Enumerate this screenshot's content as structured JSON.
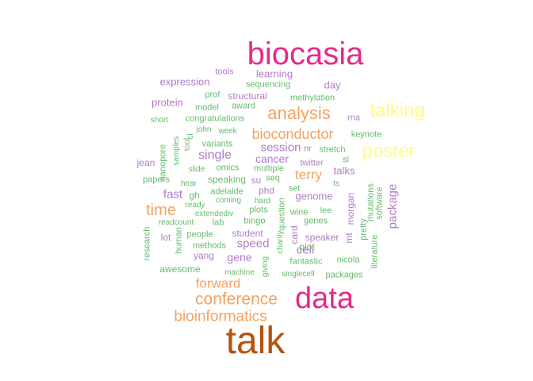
{
  "wordcloud": {
    "colors": {
      "a": "#e7298a",
      "b": "#f4a261",
      "c": "#fffb8a",
      "d": "#b07cc6",
      "e": "#66bb6a",
      "f": "#b5530e"
    },
    "words": [
      {
        "text": "talk",
        "color": "f"
      },
      {
        "text": "biocasia",
        "color": "a"
      },
      {
        "text": "data",
        "color": "a"
      },
      {
        "text": "analysis",
        "color": "b"
      },
      {
        "text": "talking",
        "color": "c"
      },
      {
        "text": "poster",
        "color": "c"
      },
      {
        "text": "conference",
        "color": "b"
      },
      {
        "text": "bioinformatics",
        "color": "b"
      },
      {
        "text": "bioconductor",
        "color": "b"
      },
      {
        "text": "time",
        "color": "b"
      },
      {
        "text": "forward",
        "color": "b"
      },
      {
        "text": "terry",
        "color": "b"
      },
      {
        "text": "session",
        "color": "d"
      },
      {
        "text": "single",
        "color": "d"
      },
      {
        "text": "cancer",
        "color": "d"
      },
      {
        "text": "fast",
        "color": "d"
      },
      {
        "text": "speed",
        "color": "d"
      },
      {
        "text": "cell",
        "color": "d"
      },
      {
        "text": "gene",
        "color": "d"
      },
      {
        "text": "package",
        "color": "d"
      },
      {
        "text": "protein",
        "color": "d"
      },
      {
        "text": "learning",
        "color": "d"
      },
      {
        "text": "day",
        "color": "d"
      },
      {
        "text": "expression",
        "color": "d"
      },
      {
        "text": "talks",
        "color": "d"
      },
      {
        "text": "genome",
        "color": "d"
      },
      {
        "text": "morgan",
        "color": "d"
      },
      {
        "text": "structural",
        "color": "d"
      },
      {
        "text": "methylation",
        "color": "e"
      },
      {
        "text": "tools",
        "color": "d"
      },
      {
        "text": "sequencing",
        "color": "e"
      },
      {
        "text": "prof",
        "color": "e"
      },
      {
        "text": "model",
        "color": "e"
      },
      {
        "text": "award",
        "color": "e"
      },
      {
        "text": "rna",
        "color": "d"
      },
      {
        "text": "short",
        "color": "e"
      },
      {
        "text": "congratulations",
        "color": "e"
      },
      {
        "text": "keynote",
        "color": "e"
      },
      {
        "text": "john",
        "color": "e"
      },
      {
        "text": "week",
        "color": "e"
      },
      {
        "text": "variants",
        "color": "e"
      },
      {
        "text": "nr",
        "color": "d"
      },
      {
        "text": "stretch",
        "color": "e"
      },
      {
        "text": "jean",
        "color": "d"
      },
      {
        "text": "twitter",
        "color": "d"
      },
      {
        "text": "sl",
        "color": "e"
      },
      {
        "text": "omics",
        "color": "e"
      },
      {
        "text": "multiple",
        "color": "e"
      },
      {
        "text": "slide",
        "color": "e"
      },
      {
        "text": "papers",
        "color": "e"
      },
      {
        "text": "speaking",
        "color": "e"
      },
      {
        "text": "su",
        "color": "d"
      },
      {
        "text": "seq",
        "color": "e"
      },
      {
        "text": "hear",
        "color": "e"
      },
      {
        "text": "gh",
        "color": "e"
      },
      {
        "text": "phd",
        "color": "d"
      },
      {
        "text": "set",
        "color": "e"
      },
      {
        "text": "ts",
        "color": "e"
      },
      {
        "text": "adelaide",
        "color": "e"
      },
      {
        "text": "coming",
        "color": "e"
      },
      {
        "text": "hard",
        "color": "e"
      },
      {
        "text": "ready",
        "color": "e"
      },
      {
        "text": "extendediv",
        "color": "e"
      },
      {
        "text": "plots",
        "color": "e"
      },
      {
        "text": "wine",
        "color": "e"
      },
      {
        "text": "lee",
        "color": "e"
      },
      {
        "text": "readcount",
        "color": "e"
      },
      {
        "text": "lab",
        "color": "e"
      },
      {
        "text": "bingo",
        "color": "e"
      },
      {
        "text": "genes",
        "color": "e"
      },
      {
        "text": "lot",
        "color": "d"
      },
      {
        "text": "people",
        "color": "e"
      },
      {
        "text": "student",
        "color": "d"
      },
      {
        "text": "speaker",
        "color": "d"
      },
      {
        "text": "methods",
        "color": "e"
      },
      {
        "text": "plot",
        "color": "e"
      },
      {
        "text": "yang",
        "color": "d"
      },
      {
        "text": "fantastic",
        "color": "e"
      },
      {
        "text": "nicola",
        "color": "e"
      },
      {
        "text": "awesome",
        "color": "e"
      },
      {
        "text": "machine",
        "color": "e"
      },
      {
        "text": "singlecell",
        "color": "e"
      },
      {
        "text": "packages",
        "color": "e"
      },
      {
        "text": "nanopore",
        "color": "e"
      },
      {
        "text": "samples",
        "color": "e"
      },
      {
        "text": "tool",
        "color": "e"
      },
      {
        "text": "cl",
        "color": "e"
      },
      {
        "text": "research",
        "color": "e"
      },
      {
        "text": "human",
        "color": "e"
      },
      {
        "text": "question",
        "color": "e"
      },
      {
        "text": "card",
        "color": "d"
      },
      {
        "text": "charity",
        "color": "e"
      },
      {
        "text": "giving",
        "color": "e"
      },
      {
        "text": "mt",
        "color": "d"
      },
      {
        "text": "pretty",
        "color": "e"
      },
      {
        "text": "mutations",
        "color": "e"
      },
      {
        "text": "software",
        "color": "e"
      },
      {
        "text": "literature",
        "color": "e"
      }
    ]
  }
}
